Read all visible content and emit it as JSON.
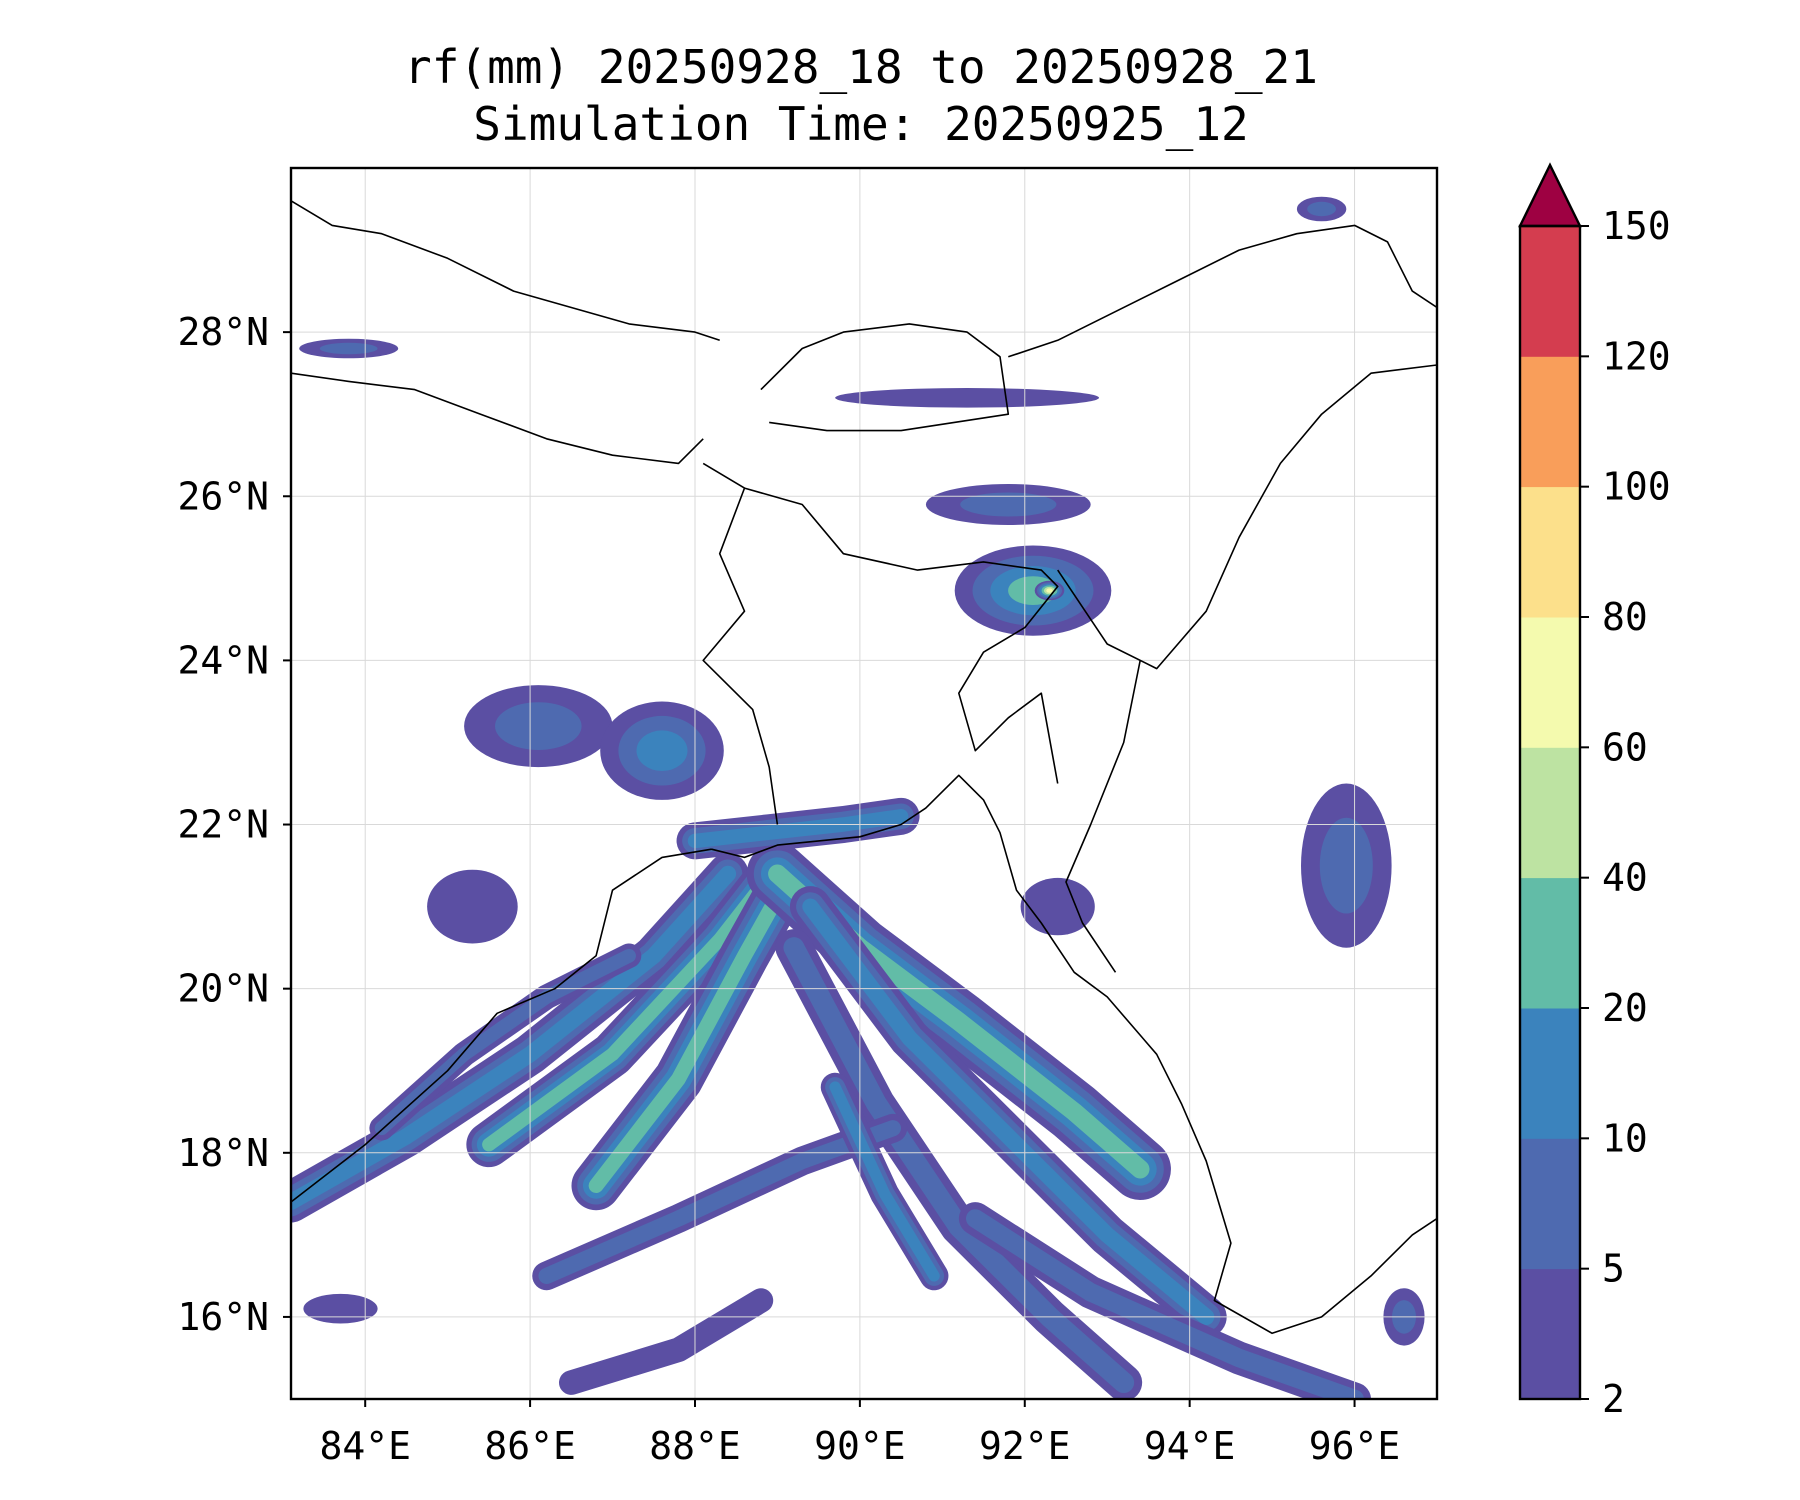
{
  "chart_data": {
    "type": "filled-contour-map",
    "title": "rf(mm) 20250928_18 to 20250928_21",
    "subtitle": "Simulation Time: 20250925_12",
    "xlabel": "",
    "ylabel": "",
    "lon_range": [
      83.1,
      97.0
    ],
    "lat_range": [
      15.0,
      30.0
    ],
    "x_ticks": [
      {
        "value": 84,
        "label": "84°E"
      },
      {
        "value": 86,
        "label": "86°E"
      },
      {
        "value": 88,
        "label": "88°E"
      },
      {
        "value": 90,
        "label": "90°E"
      },
      {
        "value": 92,
        "label": "92°E"
      },
      {
        "value": 94,
        "label": "94°E"
      },
      {
        "value": 96,
        "label": "96°E"
      }
    ],
    "y_ticks": [
      {
        "value": 16,
        "label": "16°N"
      },
      {
        "value": 18,
        "label": "18°N"
      },
      {
        "value": 20,
        "label": "20°N"
      },
      {
        "value": 22,
        "label": "22°N"
      },
      {
        "value": 24,
        "label": "24°N"
      },
      {
        "value": 26,
        "label": "26°N"
      },
      {
        "value": 28,
        "label": "28°N"
      }
    ],
    "colorbar": {
      "levels": [
        2,
        5,
        10,
        20,
        40,
        60,
        80,
        100,
        120,
        150
      ],
      "level_labels": [
        "2",
        "5",
        "10",
        "20",
        "40",
        "60",
        "80",
        "100",
        "120",
        "150"
      ],
      "colors": [
        "#5b4fa3",
        "#4e6ab0",
        "#3b83bd",
        "#62bca7",
        "#bde3a2",
        "#f4faae",
        "#fce08b",
        "#f99e5a",
        "#d43d4f"
      ],
      "extend": "max",
      "extend_color": "#9e0142"
    },
    "rain_features": [
      {
        "name": "bay-band-1",
        "path": [
          [
            83.1,
            17.4
          ],
          [
            84.5,
            18.2
          ],
          [
            86,
            19.2
          ],
          [
            87.5,
            20.4
          ],
          [
            88.4,
            21.4
          ]
        ],
        "width": 0.5,
        "class": 2
      },
      {
        "name": "bay-band-2",
        "path": [
          [
            85.5,
            18.1
          ],
          [
            87,
            19.2
          ],
          [
            88.3,
            20.6
          ],
          [
            89,
            21.5
          ]
        ],
        "width": 0.55,
        "class": 3
      },
      {
        "name": "bay-band-3",
        "path": [
          [
            86.8,
            17.6
          ],
          [
            87.8,
            18.9
          ],
          [
            88.6,
            20.4
          ],
          [
            89.1,
            21.3
          ]
        ],
        "width": 0.6,
        "class": 3
      },
      {
        "name": "bay-band-4",
        "path": [
          [
            89,
            21.4
          ],
          [
            90,
            20.5
          ],
          [
            91.2,
            19.6
          ],
          [
            92.6,
            18.5
          ],
          [
            93.4,
            17.8
          ]
        ],
        "width": 0.75,
        "class": 3
      },
      {
        "name": "bay-band-5",
        "path": [
          [
            89.4,
            21.0
          ],
          [
            90.6,
            19.4
          ],
          [
            91.8,
            18.2
          ],
          [
            93,
            17
          ],
          [
            94.2,
            16
          ]
        ],
        "width": 0.5,
        "class": 2
      },
      {
        "name": "bay-band-6",
        "path": [
          [
            89.2,
            20.5
          ],
          [
            90.2,
            18.6
          ],
          [
            91.2,
            17.1
          ],
          [
            92.3,
            16
          ],
          [
            93.2,
            15.2
          ]
        ],
        "width": 0.45,
        "class": 1
      },
      {
        "name": "bay-band-7",
        "path": [
          [
            91.4,
            17.2
          ],
          [
            92.8,
            16.3
          ],
          [
            94.6,
            15.5
          ],
          [
            96,
            15.0
          ]
        ],
        "width": 0.4,
        "class": 1
      },
      {
        "name": "bay-band-8",
        "path": [
          [
            86.2,
            16.5
          ],
          [
            87.8,
            17.2
          ],
          [
            89.3,
            17.9
          ],
          [
            90.4,
            18.3
          ]
        ],
        "width": 0.35,
        "class": 1
      },
      {
        "name": "bay-band-9",
        "path": [
          [
            86.5,
            15.2
          ],
          [
            87.8,
            15.6
          ],
          [
            88.8,
            16.2
          ]
        ],
        "width": 0.3,
        "class": 0
      },
      {
        "name": "bay-band-10",
        "path": [
          [
            89.7,
            18.8
          ],
          [
            90.3,
            17.5
          ],
          [
            90.9,
            16.5
          ]
        ],
        "width": 0.35,
        "class": 2
      },
      {
        "name": "coast-band",
        "path": [
          [
            88.0,
            21.8
          ],
          [
            88.9,
            21.9
          ],
          [
            89.8,
            22.0
          ],
          [
            90.5,
            22.1
          ]
        ],
        "width": 0.45,
        "class": 2
      },
      {
        "name": "odisha-band",
        "path": [
          [
            84.2,
            18.3
          ],
          [
            85.2,
            19.2
          ],
          [
            86.2,
            19.9
          ],
          [
            87.2,
            20.4
          ]
        ],
        "width": 0.3,
        "class": 1
      }
    ],
    "rain_patches": [
      {
        "name": "meghalaya-cell",
        "center": [
          92.1,
          24.85
        ],
        "size": [
          0.95,
          0.55
        ],
        "class": 3
      },
      {
        "name": "meghalaya-core",
        "center": [
          92.3,
          24.85
        ],
        "size": [
          0.18,
          0.12
        ],
        "class": 5
      },
      {
        "name": "assam-cell",
        "center": [
          91.8,
          25.9
        ],
        "size": [
          1.0,
          0.25
        ],
        "class": 1
      },
      {
        "name": "bhutan-band",
        "center": [
          91.3,
          27.2
        ],
        "size": [
          1.6,
          0.12
        ],
        "class": 0
      },
      {
        "name": "myanmar-cell",
        "center": [
          95.9,
          21.5
        ],
        "size": [
          0.55,
          1.0
        ],
        "class": 1
      },
      {
        "name": "east-coast-cell",
        "center": [
          86.1,
          23.2
        ],
        "size": [
          0.9,
          0.5
        ],
        "class": 1
      },
      {
        "name": "west-bengal-cell",
        "center": [
          87.6,
          22.9
        ],
        "size": [
          0.75,
          0.6
        ],
        "class": 2
      },
      {
        "name": "odisha-cell",
        "center": [
          85.3,
          21.0
        ],
        "size": [
          0.55,
          0.45
        ],
        "class": 0
      },
      {
        "name": "nepal-cell",
        "center": [
          83.8,
          27.8
        ],
        "size": [
          0.6,
          0.12
        ],
        "class": 1
      },
      {
        "name": "arakan-cell",
        "center": [
          92.4,
          21.0
        ],
        "size": [
          0.45,
          0.35
        ],
        "class": 0
      },
      {
        "name": "tibet-cell",
        "center": [
          95.6,
          29.5
        ],
        "size": [
          0.3,
          0.15
        ],
        "class": 1
      },
      {
        "name": "andaman-cell",
        "center": [
          96.6,
          16.0
        ],
        "size": [
          0.25,
          0.35
        ],
        "class": 1
      },
      {
        "name": "sw-cell",
        "center": [
          83.7,
          16.1
        ],
        "size": [
          0.45,
          0.18
        ],
        "class": 0
      }
    ],
    "coastlines": [
      {
        "name": "india-east-coast",
        "points": [
          [
            83.1,
            17.4
          ],
          [
            84.0,
            18.1
          ],
          [
            85.0,
            19.0
          ],
          [
            85.6,
            19.7
          ],
          [
            86.3,
            20.0
          ],
          [
            86.8,
            20.4
          ],
          [
            87.0,
            21.2
          ],
          [
            87.6,
            21.6
          ],
          [
            88.2,
            21.7
          ]
        ]
      },
      {
        "name": "sundarbans-coast",
        "points": [
          [
            88.2,
            21.7
          ],
          [
            88.6,
            21.6
          ],
          [
            89.0,
            21.75
          ],
          [
            89.5,
            21.8
          ],
          [
            90.0,
            21.85
          ],
          [
            90.5,
            22.0
          ],
          [
            90.8,
            22.2
          ],
          [
            91.2,
            22.6
          ],
          [
            91.5,
            22.3
          ],
          [
            91.7,
            21.9
          ],
          [
            91.9,
            21.2
          ],
          [
            92.2,
            20.8
          ],
          [
            92.6,
            20.2
          ],
          [
            93.0,
            19.9
          ],
          [
            93.6,
            19.2
          ],
          [
            93.9,
            18.6
          ],
          [
            94.2,
            17.9
          ],
          [
            94.5,
            16.9
          ],
          [
            94.3,
            16.2
          ],
          [
            95.0,
            15.8
          ],
          [
            95.6,
            16.0
          ],
          [
            96.2,
            16.5
          ],
          [
            96.7,
            17.0
          ],
          [
            97.0,
            17.2
          ]
        ]
      },
      {
        "name": "nepal-north",
        "points": [
          [
            83.1,
            29.6
          ],
          [
            83.6,
            29.3
          ],
          [
            84.2,
            29.2
          ],
          [
            85.0,
            28.9
          ],
          [
            85.8,
            28.5
          ],
          [
            86.5,
            28.3
          ],
          [
            87.2,
            28.1
          ],
          [
            88.0,
            28.0
          ],
          [
            88.3,
            27.9
          ]
        ]
      },
      {
        "name": "nepal-south",
        "points": [
          [
            83.1,
            27.5
          ],
          [
            83.8,
            27.4
          ],
          [
            84.6,
            27.3
          ],
          [
            85.4,
            27.0
          ],
          [
            86.2,
            26.7
          ],
          [
            87.0,
            26.5
          ],
          [
            87.8,
            26.4
          ],
          [
            88.1,
            26.7
          ]
        ]
      },
      {
        "name": "bhutan-border",
        "points": [
          [
            88.8,
            27.3
          ],
          [
            89.3,
            27.8
          ],
          [
            89.8,
            28.0
          ],
          [
            90.6,
            28.1
          ],
          [
            91.3,
            28.0
          ],
          [
            91.7,
            27.7
          ],
          [
            91.8,
            27.0
          ],
          [
            90.5,
            26.8
          ],
          [
            89.6,
            26.8
          ],
          [
            88.9,
            26.9
          ]
        ]
      },
      {
        "name": "tibet-border",
        "points": [
          [
            91.8,
            27.7
          ],
          [
            92.4,
            27.9
          ],
          [
            93.0,
            28.2
          ],
          [
            93.8,
            28.6
          ],
          [
            94.6,
            29.0
          ],
          [
            95.3,
            29.2
          ],
          [
            96.0,
            29.3
          ],
          [
            96.4,
            29.1
          ],
          [
            96.7,
            28.5
          ],
          [
            97.0,
            28.3
          ]
        ]
      },
      {
        "name": "bangladesh-west",
        "points": [
          [
            88.1,
            26.4
          ],
          [
            88.6,
            26.1
          ],
          [
            88.3,
            25.3
          ],
          [
            88.6,
            24.6
          ],
          [
            88.1,
            24.0
          ],
          [
            88.7,
            23.4
          ],
          [
            88.9,
            22.7
          ],
          [
            89.0,
            22.0
          ]
        ]
      },
      {
        "name": "bangladesh-north",
        "points": [
          [
            88.6,
            26.1
          ],
          [
            89.3,
            25.9
          ],
          [
            89.8,
            25.3
          ],
          [
            90.7,
            25.1
          ],
          [
            91.5,
            25.2
          ],
          [
            92.2,
            25.1
          ],
          [
            92.4,
            24.9
          ],
          [
            92.0,
            24.4
          ],
          [
            91.5,
            24.1
          ],
          [
            91.2,
            23.6
          ],
          [
            91.4,
            22.9
          ],
          [
            91.8,
            23.3
          ],
          [
            92.2,
            23.6
          ],
          [
            92.4,
            22.5
          ]
        ]
      },
      {
        "name": "northeast-india-east",
        "points": [
          [
            92.4,
            25.1
          ],
          [
            93.0,
            24.2
          ],
          [
            93.6,
            23.9
          ],
          [
            94.2,
            24.6
          ],
          [
            94.6,
            25.5
          ],
          [
            95.1,
            26.4
          ],
          [
            95.6,
            27.0
          ],
          [
            96.2,
            27.5
          ],
          [
            97.0,
            27.6
          ]
        ]
      },
      {
        "name": "myanmar-west",
        "points": [
          [
            93.4,
            24.0
          ],
          [
            93.2,
            23.0
          ],
          [
            92.8,
            22.0
          ],
          [
            92.5,
            21.3
          ],
          [
            92.7,
            20.8
          ],
          [
            93.1,
            20.2
          ]
        ]
      }
    ]
  }
}
